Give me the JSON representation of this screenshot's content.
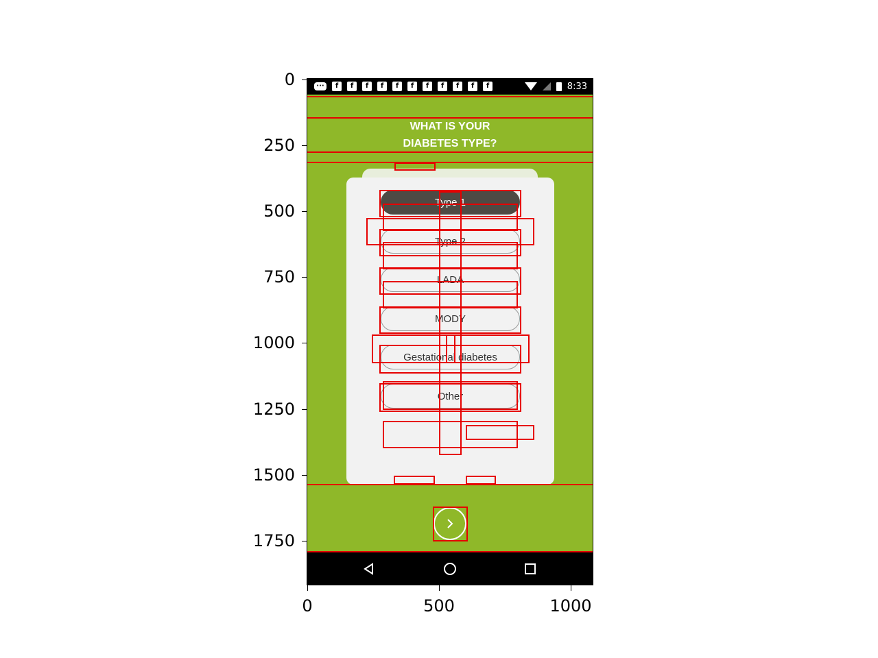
{
  "axes": {
    "y_ticks": [
      "0",
      "250",
      "500",
      "750",
      "1000",
      "1250",
      "1500",
      "1750"
    ],
    "x_ticks": [
      "0",
      "500",
      "1000"
    ]
  },
  "status_bar": {
    "time": "8:33",
    "notification_icons": [
      "message-icon",
      "facebook-icon",
      "facebook-icon",
      "facebook-icon",
      "facebook-icon",
      "facebook-icon",
      "facebook-icon",
      "facebook-icon",
      "facebook-icon",
      "facebook-icon",
      "facebook-icon",
      "facebook-icon"
    ],
    "facebook_glyph": "f"
  },
  "header": {
    "title_line1": "WHAT IS YOUR",
    "title_line2": "DIABETES TYPE?"
  },
  "options": [
    {
      "label": "Type 1",
      "selected": true
    },
    {
      "label": "Type 2",
      "selected": false
    },
    {
      "label": "LADA",
      "selected": false
    },
    {
      "label": "MODY",
      "selected": false
    },
    {
      "label": "Gestational diabetes",
      "selected": false
    },
    {
      "label": "Other",
      "selected": false
    }
  ],
  "colors": {
    "background": "#8fb829",
    "card": "#f2f2f2",
    "selected_option": "#4e4a44",
    "annotation": "#e60000"
  },
  "nav": {
    "back": "back-icon",
    "home": "home-icon",
    "recents": "recents-icon"
  }
}
